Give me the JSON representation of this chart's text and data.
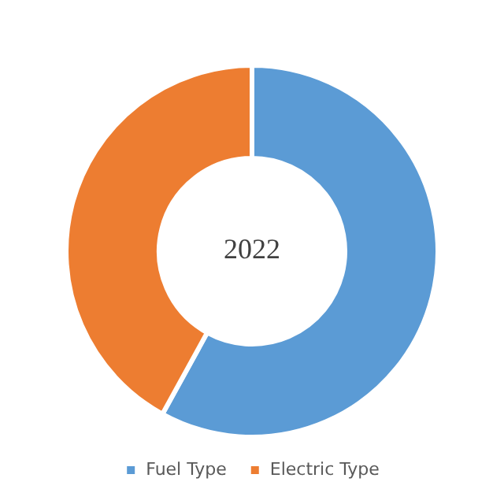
{
  "chart_data": {
    "type": "donut",
    "categories": [
      "Fuel Type",
      "Electric Type"
    ],
    "values": [
      58,
      42
    ],
    "colors": [
      "#5b9bd5",
      "#ed7d31"
    ],
    "annotations": [
      "2022"
    ],
    "legend": "bottom"
  }
}
